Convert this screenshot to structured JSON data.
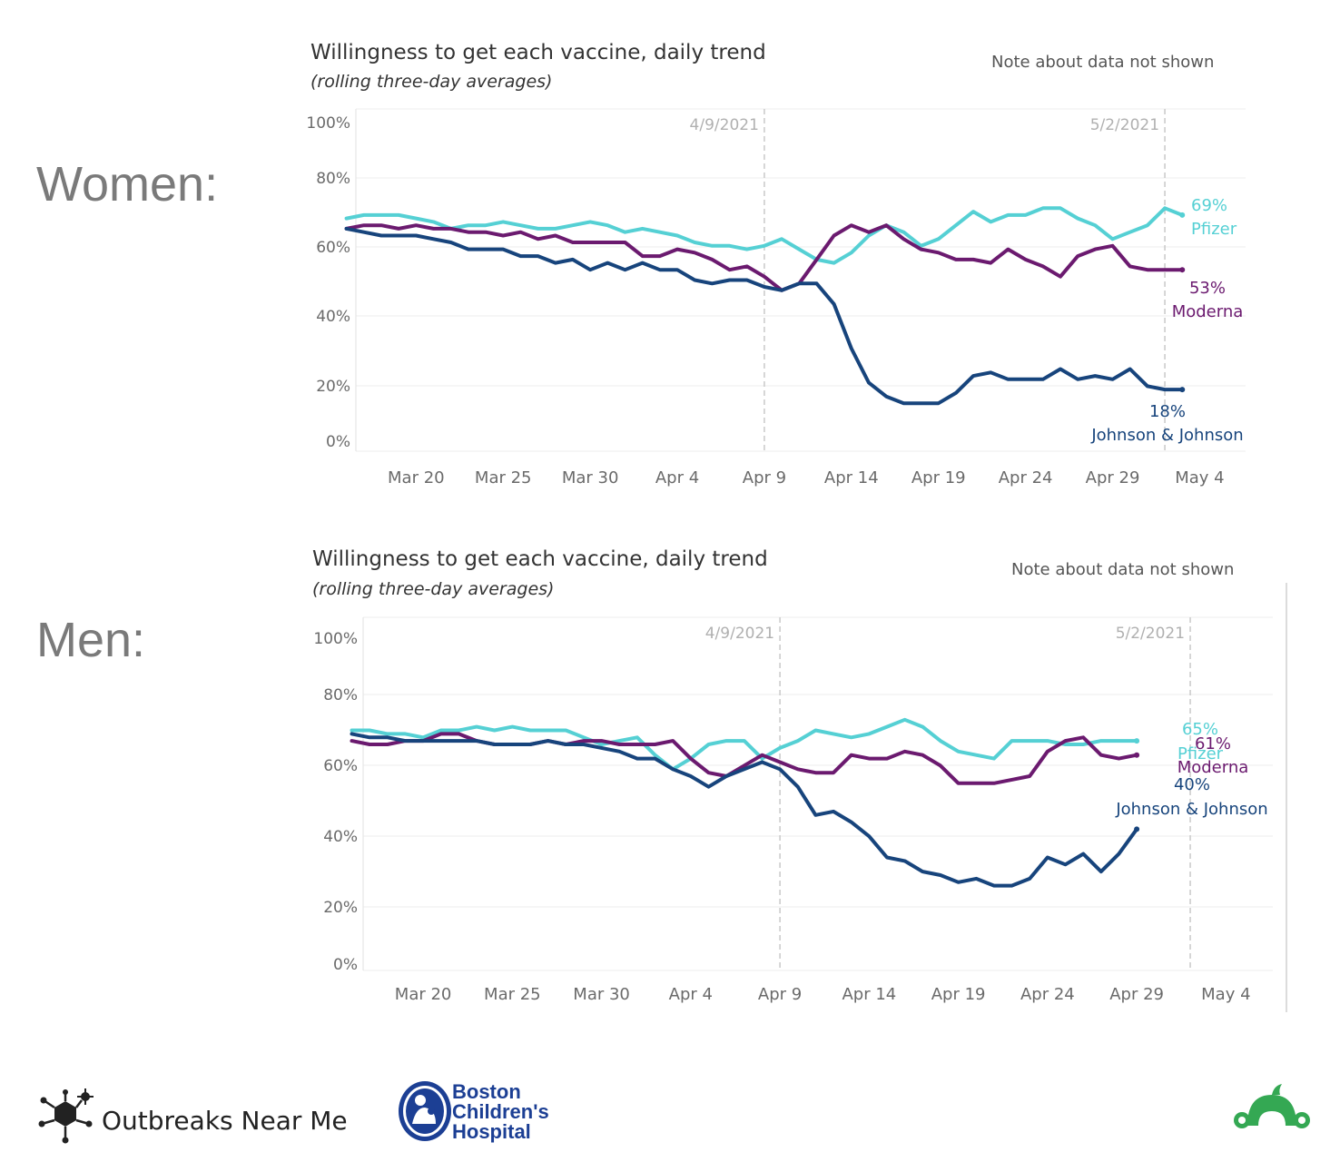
{
  "labels": {
    "women": "Women:",
    "men": "Men:"
  },
  "colors": {
    "pfizer": "#55d0d4",
    "moderna": "#6b1a6f",
    "jj": "#17447c",
    "grid": "#ececec",
    "ref": "#c9c9c9"
  },
  "chart_data": [
    {
      "type": "line",
      "group": "Women",
      "title": "Willingness to get each vaccine, daily  trend",
      "subtitle": "(rolling three-day averages)",
      "note": "Note about data not shown",
      "x_start": "Mar 16",
      "x_ticks": [
        "Mar 20",
        "Mar 25",
        "Mar 30",
        "Apr 4",
        "Apr 9",
        "Apr 14",
        "Apr 19",
        "Apr 24",
        "Apr 29",
        "May 4"
      ],
      "y_ticks": [
        "0%",
        "20%",
        "40%",
        "60%",
        "80%",
        "100%"
      ],
      "ylim": [
        0,
        100
      ],
      "reference_lines": [
        {
          "date": "Apr 9",
          "label": "4/9/2021"
        },
        {
          "date": "May 2",
          "label": "5/2/2021"
        }
      ],
      "series": [
        {
          "name": "Pfizer",
          "key": "pfizer",
          "end_value": "69%",
          "values": [
            68,
            69,
            69,
            69,
            68,
            67,
            65,
            66,
            66,
            67,
            66,
            65,
            65,
            66,
            67,
            66,
            64,
            65,
            64,
            63,
            61,
            60,
            60,
            59,
            60,
            62,
            59,
            56,
            55,
            58,
            63,
            66,
            64,
            60,
            62,
            66,
            70,
            67,
            69,
            69,
            71,
            71,
            68,
            66,
            62,
            64,
            66,
            71,
            69
          ]
        },
        {
          "name": "Moderna",
          "key": "moderna",
          "end_value": "53%",
          "values": [
            65,
            66,
            66,
            65,
            66,
            65,
            65,
            64,
            64,
            63,
            64,
            62,
            63,
            61,
            61,
            61,
            61,
            57,
            57,
            59,
            58,
            56,
            53,
            54,
            51,
            47,
            49,
            56,
            63,
            66,
            64,
            66,
            62,
            59,
            58,
            56,
            56,
            55,
            59,
            56,
            54,
            51,
            57,
            59,
            60,
            54,
            53,
            53,
            53
          ]
        },
        {
          "name": "Johnson & Johnson",
          "key": "jj",
          "end_value": "18%",
          "values": [
            65,
            64,
            63,
            63,
            63,
            62,
            61,
            59,
            59,
            59,
            57,
            57,
            55,
            56,
            53,
            55,
            53,
            55,
            53,
            53,
            50,
            49,
            50,
            50,
            48,
            47,
            49,
            49,
            43,
            30,
            20,
            16,
            14,
            14,
            14,
            17,
            22,
            23,
            21,
            21,
            21,
            24,
            21,
            22,
            21,
            24,
            19,
            18,
            18
          ]
        }
      ]
    },
    {
      "type": "line",
      "group": "Men",
      "title": "Willingness to get each vaccine, daily  trend",
      "subtitle": "(rolling three-day averages)",
      "note": "Note about data not shown",
      "x_start": "Mar 16",
      "x_ticks": [
        "Mar 20",
        "Mar 25",
        "Mar 30",
        "Apr 4",
        "Apr 9",
        "Apr 14",
        "Apr 19",
        "Apr 24",
        "Apr 29",
        "May 4"
      ],
      "y_ticks": [
        "0%",
        "20%",
        "40%",
        "60%",
        "80%",
        "100%"
      ],
      "ylim": [
        0,
        100
      ],
      "reference_lines": [
        {
          "date": "Apr 9",
          "label": "4/9/2021"
        },
        {
          "date": "May 2",
          "label": "5/2/2021"
        }
      ],
      "series": [
        {
          "name": "Pfizer",
          "key": "pfizer",
          "end_value": "65%",
          "values": [
            68,
            68,
            67,
            67,
            66,
            68,
            68,
            69,
            68,
            69,
            68,
            68,
            68,
            66,
            64,
            65,
            66,
            61,
            57,
            60,
            64,
            65,
            65,
            60,
            63,
            65,
            68,
            67,
            66,
            67,
            69,
            71,
            69,
            65,
            62,
            61,
            60,
            65,
            65,
            65,
            64,
            64,
            65,
            65,
            65
          ]
        },
        {
          "name": "Moderna",
          "key": "moderna",
          "end_value": "61%",
          "values": [
            65,
            64,
            64,
            65,
            65,
            67,
            67,
            65,
            64,
            64,
            64,
            65,
            64,
            65,
            65,
            64,
            64,
            64,
            65,
            60,
            56,
            55,
            58,
            61,
            59,
            57,
            56,
            56,
            61,
            60,
            60,
            62,
            61,
            58,
            53,
            53,
            53,
            54,
            55,
            62,
            65,
            66,
            61,
            60,
            61
          ]
        },
        {
          "name": "Johnson & Johnson",
          "key": "jj",
          "end_value": "40%",
          "values": [
            67,
            66,
            66,
            65,
            65,
            65,
            65,
            65,
            64,
            64,
            64,
            65,
            64,
            64,
            63,
            62,
            60,
            60,
            57,
            55,
            52,
            55,
            57,
            59,
            57,
            52,
            44,
            45,
            42,
            38,
            32,
            31,
            28,
            27,
            25,
            26,
            24,
            24,
            26,
            32,
            30,
            33,
            28,
            33,
            40
          ]
        }
      ]
    }
  ],
  "footer": {
    "onm_name": "Outbreaks Near Me",
    "bch_line1": "Boston",
    "bch_line2": "Children's",
    "bch_line3": "Hospital"
  }
}
